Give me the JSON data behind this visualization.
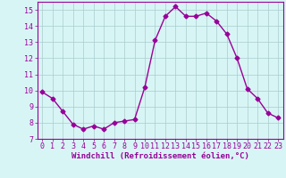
{
  "x": [
    0,
    1,
    2,
    3,
    4,
    5,
    6,
    7,
    8,
    9,
    10,
    11,
    12,
    13,
    14,
    15,
    16,
    17,
    18,
    19,
    20,
    21,
    22,
    23
  ],
  "y": [
    9.9,
    9.5,
    8.7,
    7.9,
    7.6,
    7.8,
    7.6,
    8.0,
    8.1,
    8.2,
    10.2,
    13.1,
    14.6,
    15.2,
    14.6,
    14.6,
    14.8,
    14.3,
    13.5,
    12.0,
    10.1,
    9.5,
    8.6,
    8.3
  ],
  "line_color": "#990099",
  "marker": "D",
  "marker_size": 2.5,
  "bg_color": "#d8f5f5",
  "grid_color": "#aacccc",
  "xlabel": "Windchill (Refroidissement éolien,°C)",
  "xlabel_color": "#990099",
  "tick_color": "#990099",
  "ylim": [
    7,
    15.5
  ],
  "xlim": [
    -0.5,
    23.5
  ],
  "yticks": [
    7,
    8,
    9,
    10,
    11,
    12,
    13,
    14,
    15
  ],
  "xticks": [
    0,
    1,
    2,
    3,
    4,
    5,
    6,
    7,
    8,
    9,
    10,
    11,
    12,
    13,
    14,
    15,
    16,
    17,
    18,
    19,
    20,
    21,
    22,
    23
  ],
  "spine_color": "#990099",
  "linewidth": 1.0,
  "tick_fontsize": 6.0,
  "xlabel_fontsize": 6.5,
  "ylabel_fontsize": 6.0
}
